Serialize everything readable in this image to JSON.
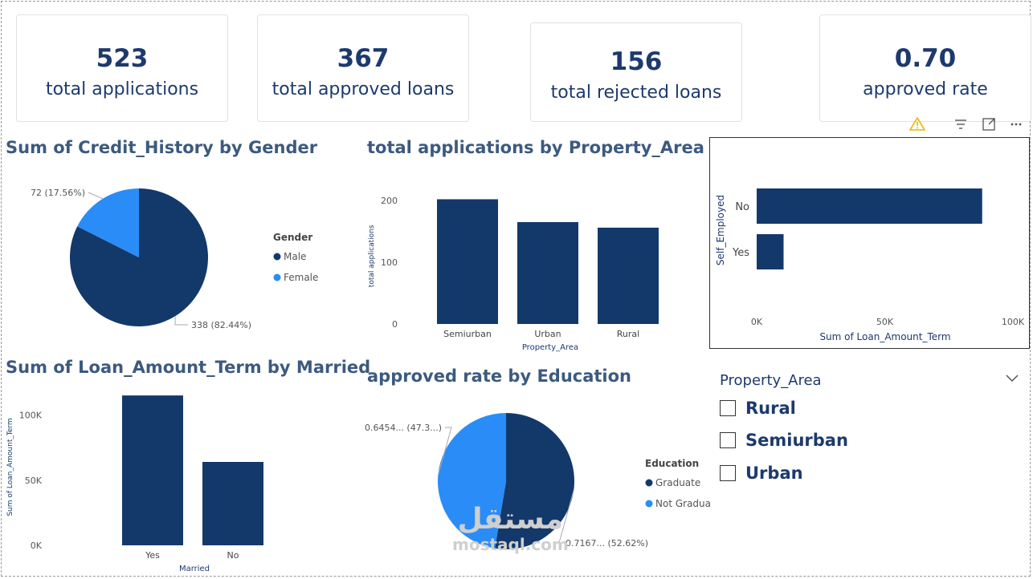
{
  "kpis": [
    {
      "value": "523",
      "label": "total applications"
    },
    {
      "value": "367",
      "label": "total approved loans"
    },
    {
      "value": "156",
      "label": "total rejected loans"
    },
    {
      "value": "0.70",
      "label": "approved rate"
    }
  ],
  "titles": {
    "gender_pie": "Sum of Credit_History by Gender",
    "property_bar": "total applications by Property_Area",
    "married_bar": "Sum of Loan_Amount_Term by Married",
    "education_pie": "approved rate by Education"
  },
  "slicer": {
    "title": "Property_Area",
    "options": [
      "Rural",
      "Semiurban",
      "Urban"
    ]
  },
  "toolbar": {
    "icons": [
      "warning-icon",
      "filter-icon",
      "focus-mode-icon",
      "more-options-icon"
    ]
  },
  "watermark": {
    "arabic": "مستقل",
    "latin": "mostaql.com"
  },
  "colors": {
    "dark": "#13396b",
    "light": "#2a8cf7",
    "title": "#3c5a80",
    "text": "#1d3a6e"
  },
  "chart_data": [
    {
      "id": "gender_pie",
      "type": "pie",
      "title": "Sum of Credit_History by Gender",
      "legend_title": "Gender",
      "legend_position": "right",
      "slices": [
        {
          "name": "Male",
          "value": 338,
          "label": "338 (82.44%)",
          "color": "#13396b"
        },
        {
          "name": "Female",
          "value": 72,
          "label": "72 (17.56%)",
          "color": "#2a8cf7"
        }
      ]
    },
    {
      "id": "property_bar",
      "type": "bar",
      "title": "total applications by Property_Area",
      "xlabel": "Property_Area",
      "ylabel": "total applications",
      "categories": [
        "Semiurban",
        "Urban",
        "Rural"
      ],
      "values": [
        202,
        165,
        156
      ],
      "yticks": [
        {
          "v": 0,
          "t": "0"
        },
        {
          "v": 100,
          "t": "100"
        },
        {
          "v": 200,
          "t": "200"
        }
      ],
      "ylim": [
        0,
        220
      ]
    },
    {
      "id": "self_employed_bar",
      "type": "bar",
      "orientation": "horizontal",
      "xlabel": "Sum of Loan_Amount_Term",
      "ylabel": "Self_Employed",
      "categories": [
        "No",
        "Yes"
      ],
      "values": [
        88000,
        10500
      ],
      "xticks": [
        {
          "v": 0,
          "t": "0K"
        },
        {
          "v": 50000,
          "t": "50K"
        },
        {
          "v": 100000,
          "t": "100K"
        }
      ],
      "xlim": [
        0,
        100000
      ]
    },
    {
      "id": "married_bar",
      "type": "bar",
      "title": "Sum of Loan_Amount_Term by Married",
      "xlabel": "Married",
      "ylabel": "Sum of Loan_Amount_Term",
      "categories": [
        "Yes",
        "No"
      ],
      "values": [
        115000,
        64000
      ],
      "yticks": [
        {
          "v": 0,
          "t": "0K"
        },
        {
          "v": 50000,
          "t": "50K"
        },
        {
          "v": 100000,
          "t": "100K"
        }
      ],
      "ylim": [
        0,
        120000
      ]
    },
    {
      "id": "education_pie",
      "type": "pie",
      "title": "approved rate by Education",
      "legend_title": "Education",
      "legend_position": "right",
      "slices": [
        {
          "name": "Graduate",
          "value": 0.7167,
          "label": "0.7167... (52.62%)",
          "color": "#13396b"
        },
        {
          "name": "Not Gradua",
          "value": 0.6454,
          "label": "0.6454... (47.3...)",
          "color": "#2a8cf7"
        }
      ]
    }
  ]
}
